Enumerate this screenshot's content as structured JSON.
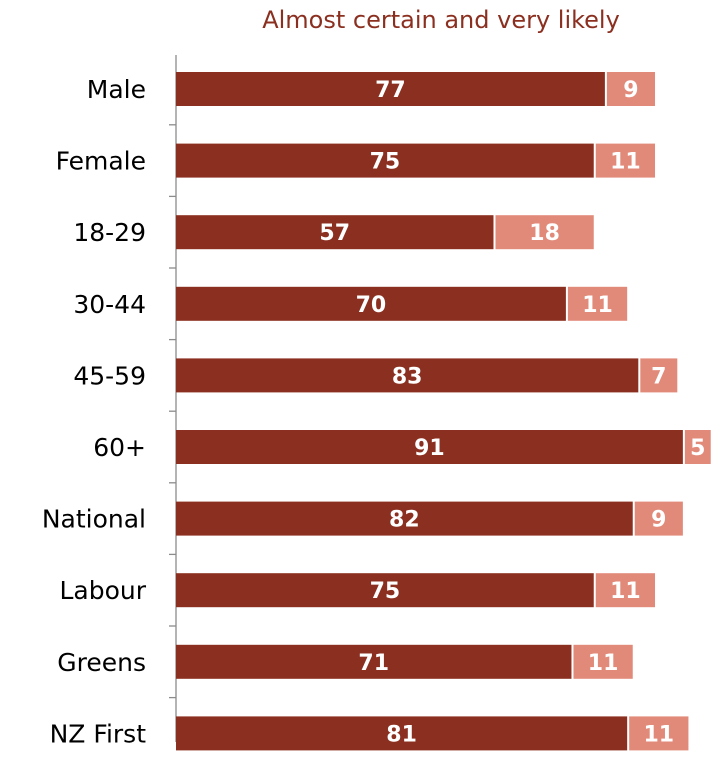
{
  "colors": {
    "primary": "#8b3020",
    "secondary": "#e28a7a",
    "axis": "#8c8c8c",
    "title": "#8b3020"
  },
  "chart_data": {
    "type": "bar",
    "orientation": "horizontal",
    "stacked": true,
    "title": "Almost certain and very likely",
    "xlabel": "",
    "ylabel": "",
    "xlim": [
      0,
      100
    ],
    "grid": false,
    "legend": "none",
    "categories": [
      "Male",
      "Female",
      "18-29",
      "30-44",
      "45-59",
      "60+",
      "National",
      "Labour",
      "Greens",
      "NZ First"
    ],
    "series": [
      {
        "values": [
          77,
          75,
          57,
          70,
          83,
          91,
          82,
          75,
          71,
          81
        ],
        "color": "#8b3020"
      },
      {
        "values": [
          9,
          11,
          18,
          11,
          7,
          5,
          9,
          11,
          11,
          11
        ],
        "color": "#e28a7a"
      }
    ]
  }
}
